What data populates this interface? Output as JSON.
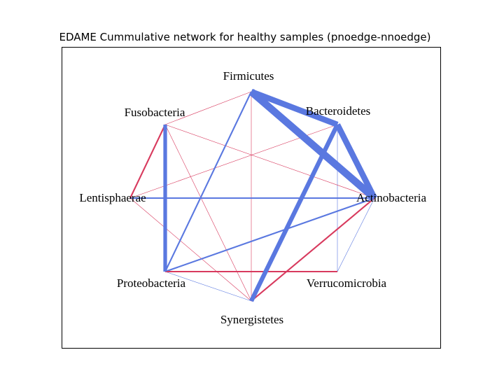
{
  "title": "EDAME Cummulative network for healthy samples (pnoedge-nnoedge)",
  "colors": {
    "positive": "#5a78e0",
    "negative": "#d83a5e"
  },
  "nodes": [
    {
      "id": "firmicutes",
      "label": "Firmicutes"
    },
    {
      "id": "bacteroidetes",
      "label": "Bacteroidetes"
    },
    {
      "id": "actinobacteria",
      "label": "Actinobacteria"
    },
    {
      "id": "verrucomicrobia",
      "label": "Verrucomicrobia"
    },
    {
      "id": "synergistetes",
      "label": "Synergistetes"
    },
    {
      "id": "proteobacteria",
      "label": "Proteobacteria"
    },
    {
      "id": "lentisphaerae",
      "label": "Lentisphaerae"
    },
    {
      "id": "fusobacteria",
      "label": "Fusobacteria"
    }
  ],
  "edges": [
    {
      "source": "firmicutes",
      "target": "bacteroidetes",
      "sign": "positive",
      "weight": 8
    },
    {
      "source": "firmicutes",
      "target": "actinobacteria",
      "sign": "positive",
      "weight": 10
    },
    {
      "source": "bacteroidetes",
      "target": "actinobacteria",
      "sign": "positive",
      "weight": 8
    },
    {
      "source": "bacteroidetes",
      "target": "synergistetes",
      "sign": "positive",
      "weight": 6
    },
    {
      "source": "fusobacteria",
      "target": "proteobacteria",
      "sign": "positive",
      "weight": 5
    },
    {
      "source": "lentisphaerae",
      "target": "actinobacteria",
      "sign": "positive",
      "weight": 2
    },
    {
      "source": "firmicutes",
      "target": "proteobacteria",
      "sign": "positive",
      "weight": 2
    },
    {
      "source": "actinobacteria",
      "target": "proteobacteria",
      "sign": "positive",
      "weight": 2
    },
    {
      "source": "bacteroidetes",
      "target": "verrucomicrobia",
      "sign": "positive",
      "weight": 0.5
    },
    {
      "source": "actinobacteria",
      "target": "verrucomicrobia",
      "sign": "positive",
      "weight": 0.5
    },
    {
      "source": "actinobacteria",
      "target": "synergistetes",
      "sign": "positive",
      "weight": 0.5
    },
    {
      "source": "proteobacteria",
      "target": "synergistetes",
      "sign": "positive",
      "weight": 0.5
    },
    {
      "source": "fusobacteria",
      "target": "lentisphaerae",
      "sign": "negative",
      "weight": 2
    },
    {
      "source": "proteobacteria",
      "target": "verrucomicrobia",
      "sign": "negative",
      "weight": 2
    },
    {
      "source": "synergistetes",
      "target": "actinobacteria",
      "sign": "negative",
      "weight": 2
    },
    {
      "source": "firmicutes",
      "target": "fusobacteria",
      "sign": "negative",
      "weight": 0.5
    },
    {
      "source": "firmicutes",
      "target": "synergistetes",
      "sign": "negative",
      "weight": 0.5
    },
    {
      "source": "fusobacteria",
      "target": "actinobacteria",
      "sign": "negative",
      "weight": 0.5
    },
    {
      "source": "fusobacteria",
      "target": "synergistetes",
      "sign": "negative",
      "weight": 0.5
    },
    {
      "source": "lentisphaerae",
      "target": "bacteroidetes",
      "sign": "negative",
      "weight": 0.5
    },
    {
      "source": "lentisphaerae",
      "target": "synergistetes",
      "sign": "negative",
      "weight": 0.5
    }
  ]
}
